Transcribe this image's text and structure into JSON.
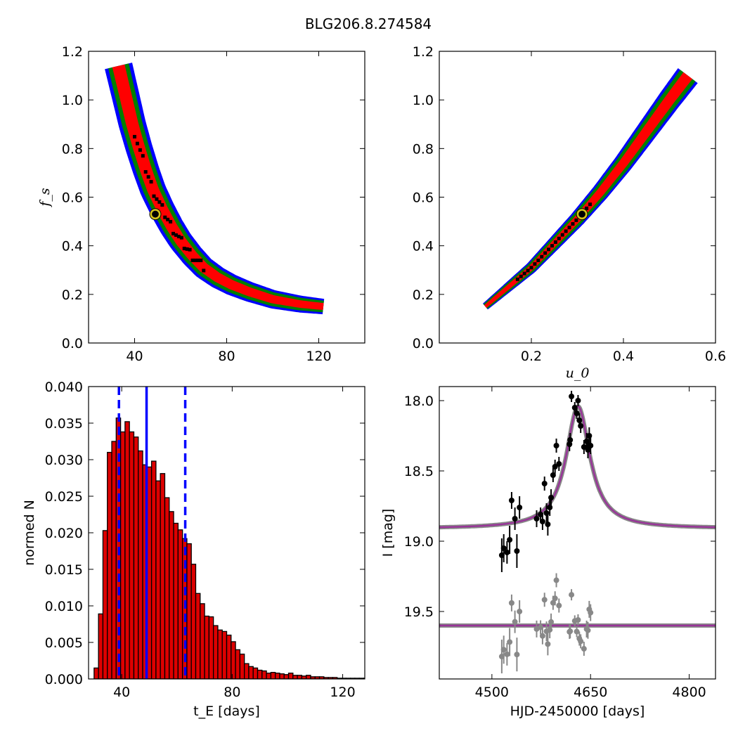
{
  "title": "BLG206.8.274584",
  "colors": {
    "sigma1": "#ff0000",
    "sigma2": "#008000",
    "sigma3": "#0000ff",
    "samples": "#000000",
    "best": "#d4c21a",
    "model": "#993399",
    "hist": "#dd0000",
    "lines": "#0000ff",
    "residual": "#888888"
  },
  "chart_data": [
    {
      "type": "heatmap",
      "panel": "fs_vs_tE",
      "xlabel": "",
      "ylabel": "f_s",
      "xlim": [
        20,
        140
      ],
      "ylim": [
        0.0,
        1.2
      ],
      "xticks": [
        "40",
        "80",
        "120"
      ],
      "yticks": [
        "0.0",
        "0.2",
        "0.4",
        "0.6",
        "0.8",
        "1.0",
        "1.2"
      ],
      "levels": [
        "1 sigma (red)",
        "2 sigma (green)",
        "3 sigma (blue)"
      ],
      "ridge": {
        "x": [
          33,
          36,
          39,
          42,
          45,
          48,
          52,
          56,
          60,
          65,
          70,
          76,
          82,
          90,
          100,
          112,
          122
        ],
        "y": [
          1.14,
          1.02,
          0.9,
          0.8,
          0.71,
          0.63,
          0.55,
          0.48,
          0.42,
          0.36,
          0.31,
          0.27,
          0.24,
          0.21,
          0.18,
          0.16,
          0.15
        ]
      },
      "best_fit": {
        "x": 49,
        "y": 0.53
      }
    },
    {
      "type": "heatmap",
      "panel": "fs_vs_u0",
      "xlabel": "u_0",
      "ylabel": "",
      "xlim": [
        0.0,
        0.6
      ],
      "ylim": [
        0.0,
        1.2
      ],
      "xticks": [
        "0.2",
        "0.4",
        "0.6"
      ],
      "yticks": [
        "0.0",
        "0.2",
        "0.4",
        "0.6",
        "0.8",
        "1.0",
        "1.2"
      ],
      "levels": [
        "1 sigma (red)",
        "2 sigma (green)",
        "3 sigma (blue)"
      ],
      "ridge": {
        "x": [
          0.1,
          0.15,
          0.2,
          0.25,
          0.3,
          0.35,
          0.4,
          0.45,
          0.5,
          0.54
        ],
        "y": [
          0.15,
          0.23,
          0.31,
          0.41,
          0.51,
          0.62,
          0.74,
          0.87,
          1.0,
          1.1
        ]
      },
      "best_fit": {
        "x": 0.31,
        "y": 0.53
      }
    },
    {
      "type": "bar",
      "panel": "tE_histogram",
      "xlabel": "t_E [days]",
      "ylabel": "normed N",
      "xlim": [
        28,
        128
      ],
      "ylim": [
        0.0,
        0.04
      ],
      "xticks": [
        "40",
        "80",
        "120"
      ],
      "yticks": [
        "0.000",
        "0.005",
        "0.010",
        "0.015",
        "0.020",
        "0.025",
        "0.030",
        "0.035",
        "0.040"
      ],
      "bin_start": 30,
      "bin_width": 1.6,
      "values": [
        0.0015,
        0.0089,
        0.0203,
        0.031,
        0.0325,
        0.0357,
        0.0338,
        0.0352,
        0.0338,
        0.0331,
        0.0312,
        0.0293,
        0.029,
        0.0298,
        0.0271,
        0.0281,
        0.0248,
        0.0229,
        0.0213,
        0.0204,
        0.0192,
        0.0185,
        0.0157,
        0.0117,
        0.0103,
        0.0086,
        0.0085,
        0.0073,
        0.0067,
        0.0065,
        0.006,
        0.0051,
        0.004,
        0.0034,
        0.0021,
        0.0017,
        0.0015,
        0.0012,
        0.0011,
        0.0008,
        0.0009,
        0.0008,
        0.0007,
        0.0006,
        0.0008,
        0.0005,
        0.0005,
        0.0004,
        0.0005,
        0.0003,
        0.0003,
        0.0003,
        0.0002,
        0.0002,
        0.0002,
        0.0001,
        0.0001,
        0.0001,
        0.0001,
        0.0001,
        0.0001,
        0.0001
      ],
      "median": 49,
      "interval": [
        39,
        63
      ]
    },
    {
      "type": "scatter",
      "panel": "light_curve",
      "xlabel": "HJD-2450000 [days]",
      "ylabel": "I [mag]",
      "xlim": [
        4420,
        4840
      ],
      "ylim": [
        19.98,
        17.9
      ],
      "xticks": [
        "4500",
        "4650",
        "4800"
      ],
      "yticks": [
        "18.0",
        "18.5",
        "19.0",
        "19.5"
      ],
      "model": {
        "t0": 4631,
        "baseline": 18.91,
        "peak": 18.04,
        "tau": 22
      },
      "residual_baseline": 19.6,
      "points": [
        {
          "x": 4515,
          "y": 19.1,
          "err": 0.12
        },
        {
          "x": 4518,
          "y": 19.05,
          "err": 0.1
        },
        {
          "x": 4523,
          "y": 19.08,
          "err": 0.08
        },
        {
          "x": 4527,
          "y": 18.99,
          "err": 0.1
        },
        {
          "x": 4530,
          "y": 18.71,
          "err": 0.06
        },
        {
          "x": 4535,
          "y": 18.84,
          "err": 0.08
        },
        {
          "x": 4538,
          "y": 19.07,
          "err": 0.12
        },
        {
          "x": 4542,
          "y": 18.76,
          "err": 0.08
        },
        {
          "x": 4568,
          "y": 18.84,
          "err": 0.06
        },
        {
          "x": 4574,
          "y": 18.81,
          "err": 0.05
        },
        {
          "x": 4577,
          "y": 18.86,
          "err": 0.06
        },
        {
          "x": 4580,
          "y": 18.59,
          "err": 0.05
        },
        {
          "x": 4583,
          "y": 18.8,
          "err": 0.07
        },
        {
          "x": 4585,
          "y": 18.88,
          "err": 0.08
        },
        {
          "x": 4588,
          "y": 18.76,
          "err": 0.06
        },
        {
          "x": 4590,
          "y": 18.69,
          "err": 0.06
        },
        {
          "x": 4593,
          "y": 18.53,
          "err": 0.05
        },
        {
          "x": 4596,
          "y": 18.47,
          "err": 0.05
        },
        {
          "x": 4598,
          "y": 18.32,
          "err": 0.05
        },
        {
          "x": 4602,
          "y": 18.45,
          "err": 0.05
        },
        {
          "x": 4618,
          "y": 18.31,
          "err": 0.05
        },
        {
          "x": 4619,
          "y": 18.28,
          "err": 0.05
        },
        {
          "x": 4621,
          "y": 17.97,
          "err": 0.04
        },
        {
          "x": 4626,
          "y": 18.05,
          "err": 0.04
        },
        {
          "x": 4629,
          "y": 18.09,
          "err": 0.04
        },
        {
          "x": 4631,
          "y": 18.0,
          "err": 0.04
        },
        {
          "x": 4633,
          "y": 18.14,
          "err": 0.05
        },
        {
          "x": 4635,
          "y": 18.18,
          "err": 0.05
        },
        {
          "x": 4640,
          "y": 18.33,
          "err": 0.05
        },
        {
          "x": 4644,
          "y": 18.29,
          "err": 0.06
        },
        {
          "x": 4646,
          "y": 18.35,
          "err": 0.06
        },
        {
          "x": 4648,
          "y": 18.25,
          "err": 0.06
        },
        {
          "x": 4650,
          "y": 18.32,
          "err": 0.06
        }
      ]
    }
  ]
}
